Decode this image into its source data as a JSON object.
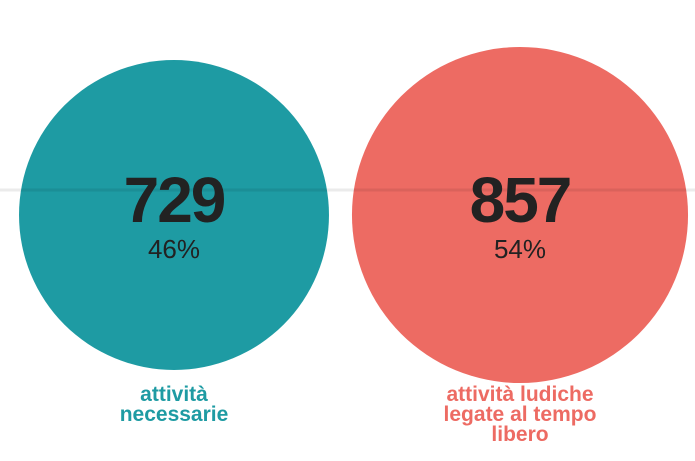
{
  "chart_data": {
    "type": "bubble",
    "categories": [
      "attività necessarie",
      "attività ludiche legate al tempo libero"
    ],
    "values": [
      729,
      857
    ],
    "shares": [
      46,
      54
    ],
    "share_labels": [
      "46%",
      "54%"
    ],
    "colors": [
      "#1e9ba3",
      "#ed6b63"
    ]
  }
}
